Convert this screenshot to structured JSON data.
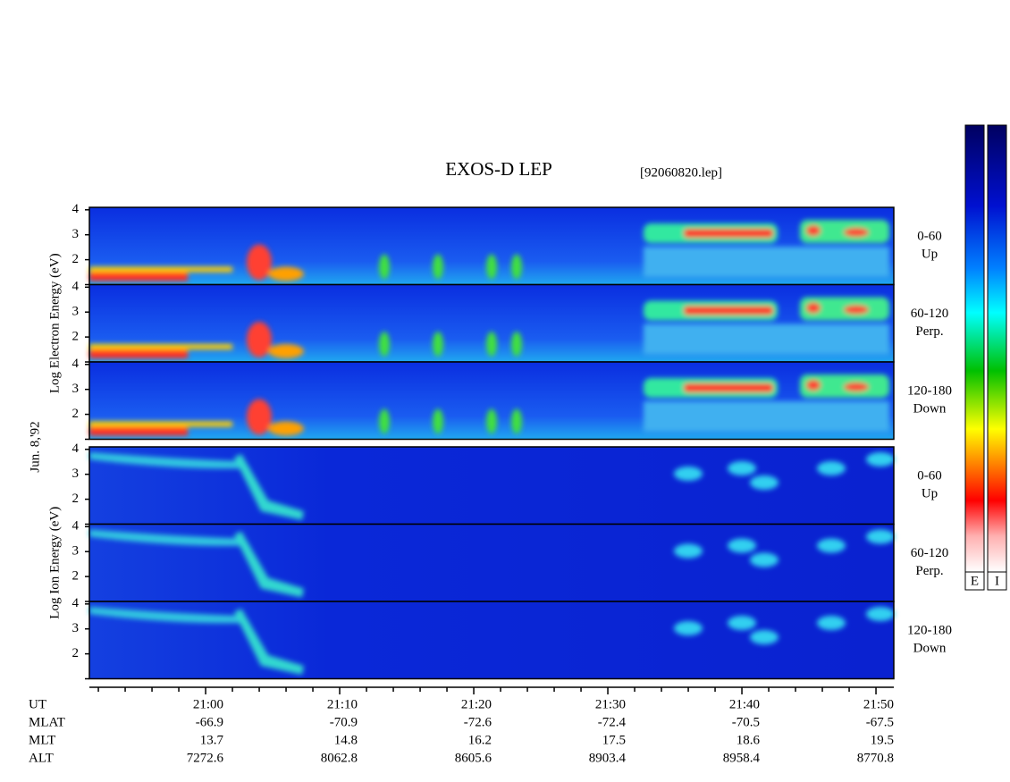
{
  "chart_data": {
    "type": "spectrogram",
    "title": "EXOS-D LEP",
    "file_label": "[92060820.lep]",
    "date_label": "Jun. 8,'92",
    "groups": [
      {
        "axis_label": "Log Electron Energy (eV)",
        "panels": [
          {
            "angle": "0-60",
            "direction": "Up"
          },
          {
            "angle": "60-120",
            "direction": "Perp."
          },
          {
            "angle": "120-180",
            "direction": "Down"
          }
        ]
      },
      {
        "axis_label": "Log Ion Energy (eV)",
        "panels": [
          {
            "angle": "0-60",
            "direction": "Up"
          },
          {
            "angle": "60-120",
            "direction": "Perp."
          },
          {
            "angle": "120-180",
            "direction": "Down"
          }
        ]
      }
    ],
    "ylim": [
      1,
      4.1
    ],
    "yticks": [
      2,
      3,
      4
    ],
    "minor_yticks": [
      1
    ],
    "xlim": [
      -8.67,
      51.33
    ],
    "xticks": [
      {
        "value": 0,
        "label": "21:00"
      },
      {
        "value": 10,
        "label": "21:10"
      },
      {
        "value": 20,
        "label": "21:20"
      },
      {
        "value": 30,
        "label": "21:30"
      },
      {
        "value": 40,
        "label": "21:40"
      },
      {
        "value": 50,
        "label": "21:50"
      }
    ],
    "minor_xticks": [
      -8,
      -6,
      -4,
      -2,
      2,
      4,
      6,
      8,
      12,
      14,
      16,
      18,
      22,
      24,
      26,
      28,
      32,
      34,
      36,
      38,
      42,
      44,
      46,
      48
    ],
    "orbit_rows": [
      {
        "name": "UT"
      },
      {
        "name": "MLAT",
        "values": [
          -66.9,
          -70.9,
          -72.6,
          -72.4,
          -70.5,
          -67.5
        ]
      },
      {
        "name": "MLT",
        "values": [
          13.7,
          14.8,
          16.2,
          17.5,
          18.6,
          19.5
        ]
      },
      {
        "name": "ALT",
        "values": [
          7272.6,
          8062.8,
          8605.6,
          8903.4,
          8958.4,
          8770.8
        ]
      }
    ],
    "colorbar_labels": [
      "E",
      "I"
    ]
  }
}
